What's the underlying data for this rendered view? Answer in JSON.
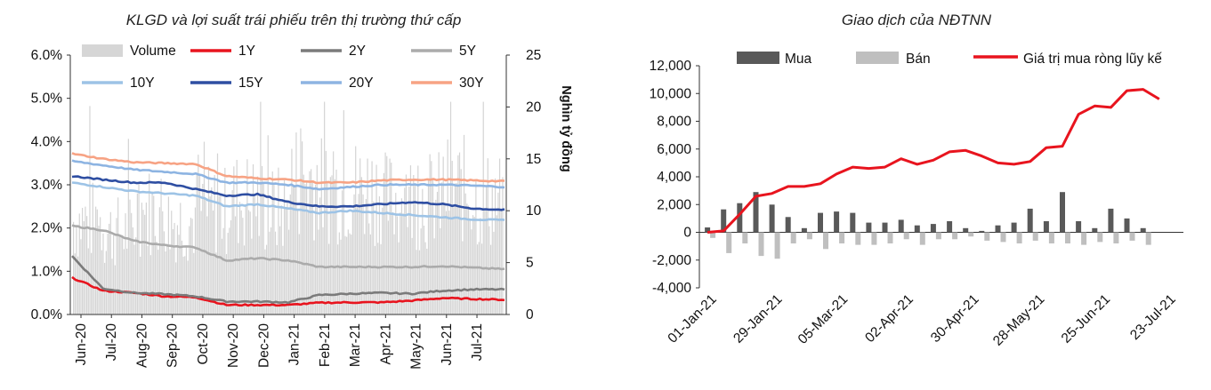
{
  "chart_data": [
    {
      "type": "bar+line",
      "title": "KLGD và lợi suất trái phiếu trên thị trường thứ cấp",
      "ylabel_right": "Nghìn tỷ đồng",
      "y_left": {
        "range": [
          0,
          6
        ],
        "ticks": [
          "0.0%",
          "1.0%",
          "2.0%",
          "3.0%",
          "4.0%",
          "5.0%",
          "6.0%"
        ]
      },
      "y_right": {
        "range": [
          0,
          25
        ],
        "ticks": [
          "0",
          "5",
          "10",
          "15",
          "20",
          "25"
        ]
      },
      "x_ticks": [
        "Jun-20",
        "Jul-20",
        "Aug-20",
        "Sep-20",
        "Oct-20",
        "Nov-20",
        "Dec-20",
        "Jan-21",
        "Feb-21",
        "Mar-21",
        "Apr-21",
        "May-21",
        "Jun-21",
        "Jul-21"
      ],
      "legend": [
        {
          "name": "Volume",
          "color": "#d6d6d6",
          "kind": "box"
        },
        {
          "name": "1Y",
          "color": "#e8141e",
          "kind": "line"
        },
        {
          "name": "2Y",
          "color": "#7b7b7b",
          "kind": "line"
        },
        {
          "name": "5Y",
          "color": "#ababab",
          "kind": "line"
        },
        {
          "name": "10Y",
          "color": "#9dc3e6",
          "kind": "line"
        },
        {
          "name": "15Y",
          "color": "#2e4ea2",
          "kind": "line"
        },
        {
          "name": "20Y",
          "color": "#8db4e2",
          "kind": "line"
        },
        {
          "name": "30Y",
          "color": "#f7a384",
          "kind": "line"
        }
      ],
      "volume_monthly_avg": [
        9,
        8,
        10,
        9,
        10,
        11,
        10,
        13,
        12,
        12,
        11,
        11,
        12,
        11
      ],
      "yield_series": [
        {
          "name": "1Y",
          "color": "#e8141e",
          "values": [
            0.85,
            0.55,
            0.5,
            0.42,
            0.4,
            0.22,
            0.22,
            0.22,
            0.27,
            0.28,
            0.28,
            0.32,
            0.38,
            0.36,
            0.34
          ]
        },
        {
          "name": "2Y",
          "color": "#7b7b7b",
          "values": [
            1.35,
            0.6,
            0.5,
            0.47,
            0.42,
            0.3,
            0.3,
            0.28,
            0.45,
            0.48,
            0.5,
            0.48,
            0.55,
            0.58,
            0.58
          ]
        },
        {
          "name": "5Y",
          "color": "#ababab",
          "values": [
            2.05,
            1.95,
            1.7,
            1.6,
            1.55,
            1.25,
            1.3,
            1.25,
            1.1,
            1.1,
            1.1,
            1.1,
            1.12,
            1.08,
            1.05
          ]
        },
        {
          "name": "10Y",
          "color": "#9dc3e6",
          "values": [
            3.05,
            2.95,
            2.85,
            2.8,
            2.75,
            2.5,
            2.55,
            2.45,
            2.35,
            2.4,
            2.35,
            2.3,
            2.25,
            2.2,
            2.18
          ]
        },
        {
          "name": "15Y",
          "color": "#2e4ea2",
          "values": [
            3.2,
            3.12,
            3.05,
            3.05,
            2.9,
            2.75,
            2.78,
            2.6,
            2.5,
            2.5,
            2.55,
            2.6,
            2.55,
            2.45,
            2.42
          ]
        },
        {
          "name": "20Y",
          "color": "#8db4e2",
          "values": [
            3.55,
            3.45,
            3.35,
            3.3,
            3.25,
            3.05,
            3.05,
            3.0,
            2.9,
            2.95,
            3.0,
            3.0,
            3.0,
            2.98,
            2.95
          ]
        },
        {
          "name": "30Y",
          "color": "#f7a384",
          "values": [
            3.72,
            3.6,
            3.52,
            3.5,
            3.48,
            3.2,
            3.15,
            3.12,
            3.05,
            3.05,
            3.1,
            3.12,
            3.12,
            3.1,
            3.08
          ]
        }
      ]
    },
    {
      "type": "bar+line",
      "title": "Giao dịch của NĐTNN",
      "y_range": [
        -4000,
        12000
      ],
      "y_ticks": [
        "-4,000",
        "-2,000",
        "0",
        "2,000",
        "4,000",
        "6,000",
        "8,000",
        "10,000",
        "12,000"
      ],
      "x_ticks": [
        "01-Jan-21",
        "29-Jan-21",
        "05-Mar-21",
        "02-Apr-21",
        "30-Apr-21",
        "28-May-21",
        "25-Jun-21",
        "23-Jul-21"
      ],
      "legend": [
        {
          "name": "Mua",
          "color": "#595959",
          "kind": "box"
        },
        {
          "name": "Bán",
          "color": "#bfbfbf",
          "kind": "box"
        },
        {
          "name": "Giá trị mua ròng lũy kế",
          "color": "#e8141e",
          "kind": "line"
        }
      ],
      "weeks": 30,
      "buy": [
        350,
        1650,
        2100,
        2900,
        2000,
        1100,
        300,
        1400,
        1500,
        1400,
        700,
        700,
        900,
        500,
        600,
        800,
        300,
        100,
        500,
        700,
        1700,
        800,
        2900,
        800,
        300,
        1700,
        1000,
        300,
        0,
        0
      ],
      "sell": [
        -400,
        -1500,
        -800,
        -1700,
        -1900,
        -800,
        -500,
        -1200,
        -800,
        -900,
        -900,
        -800,
        -500,
        -900,
        -500,
        -500,
        -300,
        -600,
        -700,
        -800,
        -600,
        -800,
        -800,
        -900,
        -700,
        -800,
        -600,
        -900,
        0,
        0
      ],
      "cumulative": [
        0,
        100,
        1300,
        2600,
        2800,
        3300,
        3300,
        3500,
        4200,
        4700,
        4600,
        4700,
        5300,
        4900,
        5200,
        5800,
        5900,
        5500,
        5000,
        4900,
        5100,
        6100,
        6200,
        8500,
        9100,
        9000,
        10200,
        10300,
        9600,
        null
      ]
    }
  ]
}
